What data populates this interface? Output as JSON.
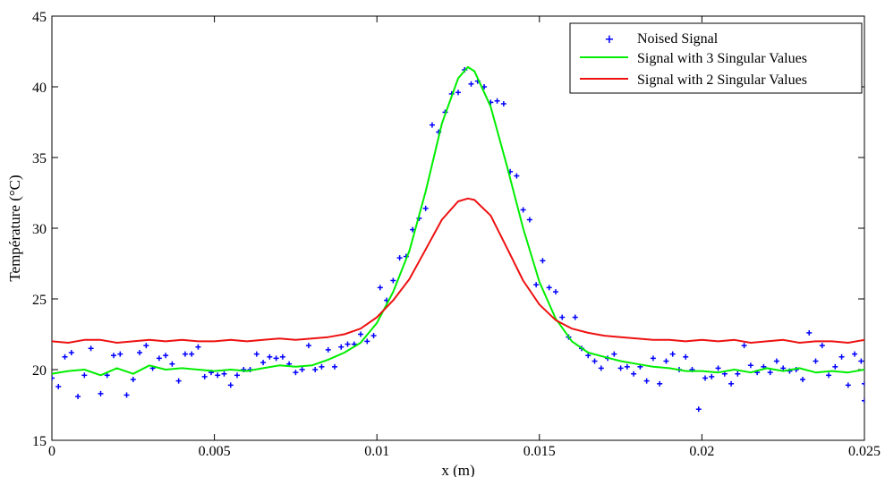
{
  "chart_data": {
    "type": "line",
    "title": "",
    "xlabel": "x (m)",
    "ylabel": "Température (°C)",
    "xlim": [
      0,
      0.025
    ],
    "ylim": [
      15,
      45
    ],
    "x_ticks": [
      0,
      0.005,
      0.01,
      0.015,
      0.02,
      0.025
    ],
    "x_tick_labels": [
      "0",
      "0.005",
      "0.01",
      "0.015",
      "0.02",
      "0.025"
    ],
    "y_ticks": [
      15,
      20,
      25,
      30,
      35,
      40,
      45
    ],
    "y_tick_labels": [
      "15",
      "20",
      "25",
      "30",
      "35",
      "40",
      "45"
    ],
    "grid": false,
    "legend_position": "top-right",
    "series": [
      {
        "name": "Noised Signal",
        "kind": "scatter",
        "marker": "+",
        "color": "#0000ff",
        "points": [
          [
            0.0,
            19.4
          ],
          [
            0.0002,
            18.8
          ],
          [
            0.0004,
            20.9
          ],
          [
            0.0006,
            21.2
          ],
          [
            0.0008,
            18.1
          ],
          [
            0.001,
            19.6
          ],
          [
            0.0012,
            21.5
          ],
          [
            0.0015,
            18.3
          ],
          [
            0.0017,
            19.6
          ],
          [
            0.0019,
            21.0
          ],
          [
            0.0021,
            21.1
          ],
          [
            0.0023,
            18.2
          ],
          [
            0.0025,
            19.3
          ],
          [
            0.0027,
            21.2
          ],
          [
            0.0029,
            21.7
          ],
          [
            0.0031,
            20.1
          ],
          [
            0.0033,
            20.8
          ],
          [
            0.0035,
            21.0
          ],
          [
            0.0037,
            20.4
          ],
          [
            0.0039,
            19.2
          ],
          [
            0.0041,
            21.1
          ],
          [
            0.0043,
            21.1
          ],
          [
            0.0045,
            21.6
          ],
          [
            0.0047,
            19.5
          ],
          [
            0.0049,
            19.8
          ],
          [
            0.0051,
            19.6
          ],
          [
            0.0053,
            19.7
          ],
          [
            0.0055,
            18.9
          ],
          [
            0.0057,
            19.6
          ],
          [
            0.0059,
            20.0
          ],
          [
            0.0061,
            20.0
          ],
          [
            0.0063,
            21.1
          ],
          [
            0.0065,
            20.5
          ],
          [
            0.0067,
            20.9
          ],
          [
            0.0069,
            20.8
          ],
          [
            0.0071,
            20.9
          ],
          [
            0.0073,
            20.4
          ],
          [
            0.0075,
            19.8
          ],
          [
            0.0077,
            20.0
          ],
          [
            0.0079,
            21.7
          ],
          [
            0.0081,
            20.0
          ],
          [
            0.0083,
            20.2
          ],
          [
            0.0085,
            21.4
          ],
          [
            0.0087,
            20.2
          ],
          [
            0.0089,
            21.6
          ],
          [
            0.0091,
            21.8
          ],
          [
            0.0093,
            21.8
          ],
          [
            0.0095,
            22.5
          ],
          [
            0.0097,
            22.0
          ],
          [
            0.0099,
            22.4
          ],
          [
            0.0101,
            25.8
          ],
          [
            0.0103,
            24.9
          ],
          [
            0.0105,
            26.3
          ],
          [
            0.0107,
            27.9
          ],
          [
            0.0109,
            28.0
          ],
          [
            0.0111,
            29.9
          ],
          [
            0.0113,
            30.7
          ],
          [
            0.0115,
            31.4
          ],
          [
            0.0117,
            37.3
          ],
          [
            0.0119,
            36.8
          ],
          [
            0.0121,
            38.2
          ],
          [
            0.0123,
            39.5
          ],
          [
            0.0125,
            39.6
          ],
          [
            0.0127,
            41.2
          ],
          [
            0.0129,
            40.2
          ],
          [
            0.0131,
            40.4
          ],
          [
            0.0133,
            40.0
          ],
          [
            0.0135,
            38.9
          ],
          [
            0.0137,
            39.0
          ],
          [
            0.0139,
            38.8
          ],
          [
            0.0141,
            34.0
          ],
          [
            0.0143,
            33.7
          ],
          [
            0.0145,
            31.3
          ],
          [
            0.0147,
            30.6
          ],
          [
            0.0149,
            26.0
          ],
          [
            0.0151,
            27.7
          ],
          [
            0.0153,
            25.8
          ],
          [
            0.0155,
            25.5
          ],
          [
            0.0157,
            23.7
          ],
          [
            0.0159,
            22.3
          ],
          [
            0.0161,
            23.7
          ],
          [
            0.0163,
            21.5
          ],
          [
            0.0165,
            21.0
          ],
          [
            0.0167,
            20.6
          ],
          [
            0.0169,
            20.1
          ],
          [
            0.0171,
            20.8
          ],
          [
            0.0173,
            21.1
          ],
          [
            0.0175,
            20.1
          ],
          [
            0.0177,
            20.2
          ],
          [
            0.0179,
            19.7
          ],
          [
            0.0181,
            20.2
          ],
          [
            0.0183,
            19.2
          ],
          [
            0.0185,
            20.8
          ],
          [
            0.0187,
            19.0
          ],
          [
            0.0189,
            20.6
          ],
          [
            0.0191,
            21.1
          ],
          [
            0.0193,
            20.0
          ],
          [
            0.0195,
            20.9
          ],
          [
            0.0197,
            20.0
          ],
          [
            0.0199,
            17.2
          ],
          [
            0.0201,
            19.4
          ],
          [
            0.0203,
            19.5
          ],
          [
            0.0205,
            20.1
          ],
          [
            0.0207,
            19.7
          ],
          [
            0.0209,
            19.0
          ],
          [
            0.0211,
            19.7
          ],
          [
            0.0213,
            21.7
          ],
          [
            0.0215,
            20.3
          ],
          [
            0.0217,
            19.8
          ],
          [
            0.0219,
            20.2
          ],
          [
            0.0221,
            19.8
          ],
          [
            0.0223,
            20.6
          ],
          [
            0.0225,
            20.1
          ],
          [
            0.0227,
            19.9
          ],
          [
            0.0229,
            20.0
          ],
          [
            0.0231,
            19.3
          ],
          [
            0.0233,
            22.6
          ],
          [
            0.0235,
            20.6
          ],
          [
            0.0237,
            21.7
          ],
          [
            0.0239,
            19.6
          ],
          [
            0.0241,
            20.2
          ],
          [
            0.0243,
            20.9
          ],
          [
            0.0245,
            18.9
          ],
          [
            0.0247,
            21.1
          ],
          [
            0.0249,
            20.6
          ],
          [
            0.025,
            17.8
          ],
          [
            0.025,
            19.0
          ]
        ]
      },
      {
        "name": "Signal with 3 Singular Values",
        "kind": "line",
        "color": "#00ee00",
        "x": [
          0,
          0.0005,
          0.001,
          0.0015,
          0.002,
          0.0025,
          0.003,
          0.0035,
          0.004,
          0.0045,
          0.005,
          0.0055,
          0.006,
          0.0065,
          0.007,
          0.0075,
          0.008,
          0.0085,
          0.009,
          0.0095,
          0.01,
          0.0105,
          0.011,
          0.0115,
          0.012,
          0.0125,
          0.0128,
          0.013,
          0.0135,
          0.014,
          0.0145,
          0.015,
          0.0155,
          0.016,
          0.0165,
          0.017,
          0.0175,
          0.018,
          0.0185,
          0.019,
          0.0195,
          0.02,
          0.0205,
          0.021,
          0.0215,
          0.022,
          0.0225,
          0.023,
          0.0235,
          0.024,
          0.0245,
          0.025
        ],
        "y": [
          19.7,
          19.9,
          20.0,
          19.6,
          20.1,
          19.7,
          20.3,
          20.0,
          20.1,
          20.0,
          19.9,
          20.0,
          19.9,
          20.1,
          20.3,
          20.2,
          20.3,
          20.7,
          21.2,
          21.9,
          23.3,
          25.5,
          28.4,
          32.6,
          37.4,
          40.6,
          41.4,
          41.1,
          38.6,
          34.4,
          30.0,
          26.2,
          23.6,
          22.0,
          21.2,
          20.9,
          20.6,
          20.4,
          20.2,
          20.1,
          19.9,
          19.9,
          19.8,
          20.0,
          19.8,
          20.1,
          19.9,
          20.1,
          19.8,
          19.9,
          19.8,
          20.0
        ]
      },
      {
        "name": "Signal with 2 Singular Values",
        "kind": "line",
        "color": "#ee1111",
        "x": [
          0,
          0.0005,
          0.001,
          0.0015,
          0.002,
          0.0025,
          0.003,
          0.0035,
          0.004,
          0.0045,
          0.005,
          0.0055,
          0.006,
          0.0065,
          0.007,
          0.0075,
          0.008,
          0.0085,
          0.009,
          0.0095,
          0.01,
          0.0105,
          0.011,
          0.0115,
          0.012,
          0.0125,
          0.0128,
          0.013,
          0.0135,
          0.014,
          0.0145,
          0.015,
          0.0155,
          0.016,
          0.0165,
          0.017,
          0.0175,
          0.018,
          0.0185,
          0.019,
          0.0195,
          0.02,
          0.0205,
          0.021,
          0.0215,
          0.022,
          0.0225,
          0.023,
          0.0235,
          0.024,
          0.0245,
          0.025
        ],
        "y": [
          22.0,
          21.9,
          22.1,
          22.1,
          21.9,
          22.0,
          22.1,
          22.0,
          22.1,
          22.0,
          22.0,
          22.1,
          22.0,
          22.1,
          22.2,
          22.1,
          22.2,
          22.3,
          22.5,
          22.9,
          23.7,
          24.9,
          26.4,
          28.5,
          30.6,
          31.9,
          32.1,
          32.0,
          30.9,
          28.6,
          26.3,
          24.6,
          23.5,
          22.9,
          22.6,
          22.4,
          22.3,
          22.2,
          22.1,
          22.1,
          22.0,
          22.1,
          22.0,
          22.1,
          21.9,
          22.0,
          22.1,
          21.9,
          22.0,
          22.0,
          21.9,
          22.1
        ]
      }
    ]
  }
}
